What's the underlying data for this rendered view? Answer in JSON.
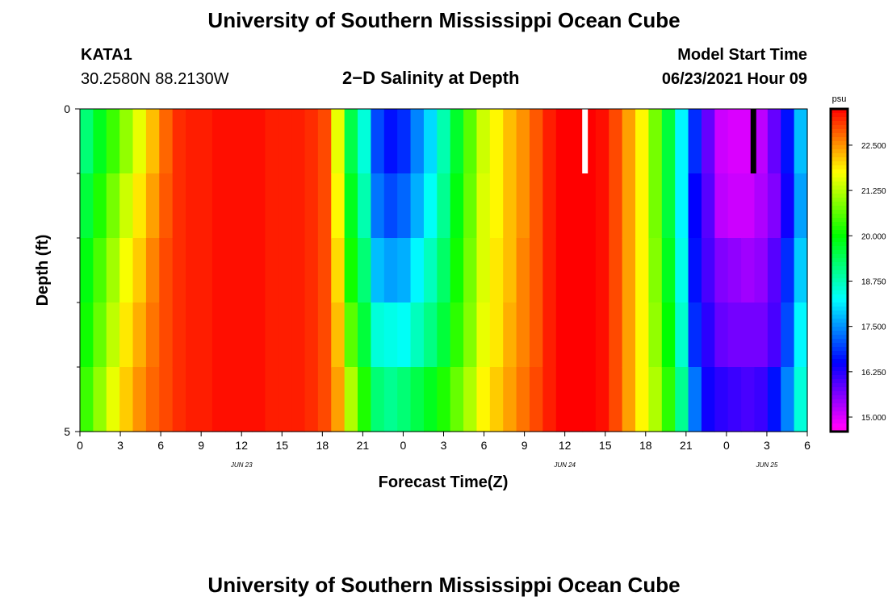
{
  "header": {
    "title": "University of Southern Mississippi Ocean Cube",
    "station_id": "KATA1",
    "station_coords": "30.2580N  88.2130W",
    "subtitle": "2−D Salinity at Depth",
    "model_start_label": "Model Start Time",
    "model_start_value": "06/23/2021 Hour 09"
  },
  "footer": {
    "title": "University of Southern Mississippi Ocean Cube"
  },
  "colors": {
    "frame": "#000000",
    "missing_white": "#ffffff",
    "missing_black": "#000000"
  },
  "chart_data": {
    "type": "heatmap",
    "title": "2−D Salinity at Depth",
    "xlabel": "Forecast Time(Z)",
    "ylabel": "Depth (ft)",
    "x_start_hour": 0,
    "x_end_hour": 54,
    "x_step_hours": 1,
    "x_ticks": [
      {
        "hour": 0,
        "label": "0"
      },
      {
        "hour": 3,
        "label": "3"
      },
      {
        "hour": 6,
        "label": "6"
      },
      {
        "hour": 9,
        "label": "9"
      },
      {
        "hour": 12,
        "label": "12"
      },
      {
        "hour": 15,
        "label": "15"
      },
      {
        "hour": 18,
        "label": "18"
      },
      {
        "hour": 21,
        "label": "21"
      },
      {
        "hour": 24,
        "label": "0"
      },
      {
        "hour": 27,
        "label": "3"
      },
      {
        "hour": 30,
        "label": "6"
      },
      {
        "hour": 33,
        "label": "9"
      },
      {
        "hour": 36,
        "label": "12"
      },
      {
        "hour": 39,
        "label": "15"
      },
      {
        "hour": 42,
        "label": "18"
      },
      {
        "hour": 45,
        "label": "21"
      },
      {
        "hour": 48,
        "label": "0"
      },
      {
        "hour": 51,
        "label": "3"
      },
      {
        "hour": 54,
        "label": "6"
      }
    ],
    "date_labels": [
      {
        "hour": 12,
        "label": "JUN 23"
      },
      {
        "hour": 36,
        "label": "JUN 24"
      },
      {
        "hour": 51,
        "label": "JUN 25"
      }
    ],
    "y_range": [
      0,
      5
    ],
    "y_tick_labels": [
      {
        "value": 0,
        "label": "0"
      },
      {
        "value": 5,
        "label": "5"
      }
    ],
    "y_minor_ticks": [
      1,
      2,
      3,
      4
    ],
    "depth_levels": 5,
    "column_values": [
      [
        19.2,
        19.6,
        19.9,
        20.1,
        20.4
      ],
      [
        19.8,
        20.2,
        20.5,
        20.7,
        21.0
      ],
      [
        20.4,
        20.8,
        21.1,
        21.3,
        21.6
      ],
      [
        21.0,
        21.4,
        21.7,
        21.9,
        22.1
      ],
      [
        21.6,
        21.9,
        22.1,
        22.3,
        22.5
      ],
      [
        22.2,
        22.4,
        22.6,
        22.7,
        22.8
      ],
      [
        22.8,
        22.9,
        23.0,
        23.0,
        23.0
      ],
      [
        23.2,
        23.2,
        23.2,
        23.2,
        23.2
      ],
      [
        23.3,
        23.3,
        23.3,
        23.3,
        23.3
      ],
      [
        23.3,
        23.3,
        23.3,
        23.3,
        23.3
      ],
      [
        23.4,
        23.4,
        23.4,
        23.4,
        23.4
      ],
      [
        23.4,
        23.4,
        23.4,
        23.4,
        23.4
      ],
      [
        23.4,
        23.4,
        23.4,
        23.4,
        23.4
      ],
      [
        23.4,
        23.4,
        23.4,
        23.4,
        23.4
      ],
      [
        23.3,
        23.3,
        23.3,
        23.3,
        23.3
      ],
      [
        23.3,
        23.3,
        23.3,
        23.3,
        23.3
      ],
      [
        23.3,
        23.3,
        23.3,
        23.3,
        23.3
      ],
      [
        23.2,
        23.2,
        23.2,
        23.2,
        23.2
      ],
      [
        23.0,
        23.0,
        23.0,
        23.0,
        23.0
      ],
      [
        21.6,
        21.8,
        22.0,
        22.2,
        22.4
      ],
      [
        19.5,
        19.8,
        20.1,
        20.6,
        21.2
      ],
      [
        18.5,
        18.8,
        19.2,
        19.6,
        20.2
      ],
      [
        17.0,
        17.3,
        17.8,
        18.5,
        19.2
      ],
      [
        16.6,
        17.0,
        17.6,
        18.4,
        19.0
      ],
      [
        16.8,
        17.2,
        17.7,
        18.3,
        19.2
      ],
      [
        17.4,
        17.7,
        18.2,
        18.7,
        19.5
      ],
      [
        18.0,
        18.3,
        18.7,
        19.1,
        19.8
      ],
      [
        18.8,
        19.0,
        19.3,
        19.6,
        20.2
      ],
      [
        19.7,
        19.9,
        20.1,
        20.3,
        20.7
      ],
      [
        20.6,
        20.7,
        20.8,
        20.9,
        21.2
      ],
      [
        21.4,
        21.5,
        21.5,
        21.6,
        21.8
      ],
      [
        21.8,
        21.8,
        21.9,
        21.9,
        22.1
      ],
      [
        22.2,
        22.2,
        22.2,
        22.3,
        22.4
      ],
      [
        22.5,
        22.5,
        22.6,
        22.6,
        22.7
      ],
      [
        22.9,
        22.9,
        22.9,
        22.9,
        23.0
      ],
      [
        23.3,
        23.3,
        23.3,
        23.3,
        23.3
      ],
      [
        23.5,
        23.5,
        23.5,
        23.5,
        23.5
      ],
      [
        23.5,
        23.5,
        23.5,
        23.5,
        23.5
      ],
      [
        23.5,
        23.5,
        23.5,
        23.5,
        23.5
      ],
      [
        23.4,
        23.4,
        23.4,
        23.4,
        23.4
      ],
      [
        23.0,
        23.0,
        23.0,
        23.0,
        23.0
      ],
      [
        22.4,
        22.4,
        22.4,
        22.4,
        22.4
      ],
      [
        21.8,
        21.8,
        21.8,
        21.8,
        21.8
      ],
      [
        20.8,
        20.8,
        20.9,
        21.0,
        21.2
      ],
      [
        19.6,
        19.6,
        19.8,
        20.0,
        20.3
      ],
      [
        18.2,
        18.2,
        18.4,
        18.6,
        19.0
      ],
      [
        16.8,
        16.5,
        16.6,
        16.8,
        17.3
      ],
      [
        15.8,
        15.9,
        16.0,
        16.2,
        16.4
      ],
      [
        15.1,
        15.2,
        15.6,
        15.8,
        16.2
      ],
      [
        15.0,
        15.1,
        15.5,
        15.7,
        16.1
      ],
      [
        15.0,
        15.1,
        15.4,
        15.7,
        16.0
      ],
      [
        15.2,
        15.3,
        15.5,
        15.7,
        16.1
      ],
      [
        15.8,
        15.6,
        15.9,
        16.0,
        16.6
      ],
      [
        16.6,
        16.4,
        16.8,
        17.0,
        17.4
      ],
      [
        17.8,
        17.6,
        17.9,
        18.2,
        18.5
      ]
    ],
    "missing_marks": [
      {
        "hour": 37.5,
        "depth_top": 0,
        "depth_bottom": 1,
        "color": "white"
      },
      {
        "hour": 50,
        "depth_top": 0,
        "depth_bottom": 1,
        "color": "black"
      }
    ],
    "colorbar": {
      "unit": "psu",
      "min": 14.6,
      "max": 23.5,
      "tick_values": [
        15.0,
        16.25,
        17.5,
        18.75,
        20.0,
        21.25,
        22.5
      ],
      "tick_labels": [
        "15.000",
        "16.250",
        "17.500",
        "18.750",
        "20.000",
        "21.250",
        "22.500"
      ]
    }
  }
}
